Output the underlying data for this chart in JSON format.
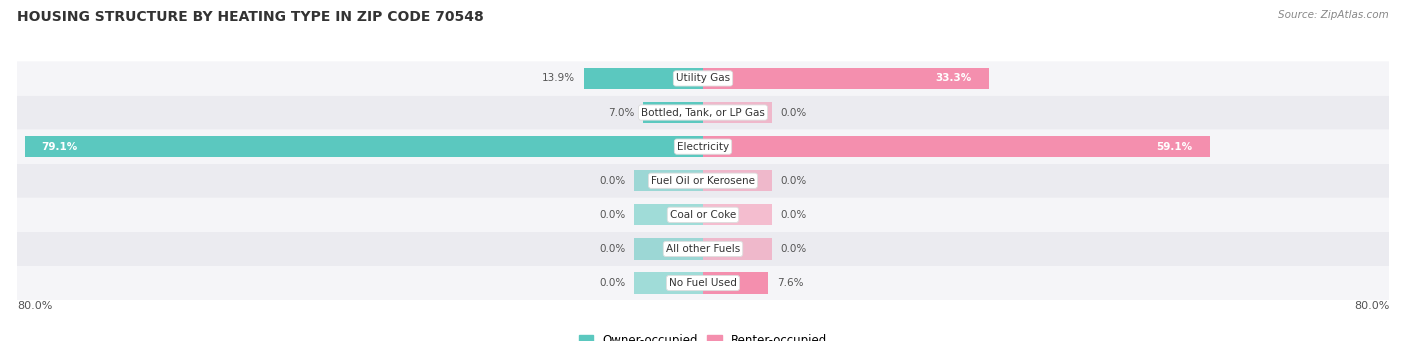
{
  "title": "HOUSING STRUCTURE BY HEATING TYPE IN ZIP CODE 70548",
  "source": "Source: ZipAtlas.com",
  "categories": [
    "Utility Gas",
    "Bottled, Tank, or LP Gas",
    "Electricity",
    "Fuel Oil or Kerosene",
    "Coal or Coke",
    "All other Fuels",
    "No Fuel Used"
  ],
  "owner_values": [
    13.9,
    7.0,
    79.1,
    0.0,
    0.0,
    0.0,
    0.0
  ],
  "renter_values": [
    33.3,
    0.0,
    59.1,
    0.0,
    0.0,
    0.0,
    7.6
  ],
  "owner_color": "#5BC8BF",
  "renter_color": "#F48FAE",
  "row_colors_even": "#F5F5F8",
  "row_colors_odd": "#EBEBF0",
  "axis_max": 80.0,
  "x_left_label": "80.0%",
  "x_right_label": "80.0%",
  "title_fontsize": 10,
  "source_fontsize": 7.5,
  "bar_height": 0.62,
  "placeholder_bar_width": 8.0,
  "background_color": "#FFFFFF",
  "label_color_dark": "#555555",
  "label_color_light": "#FFFFFF",
  "center_box_color": "#FFFFFF",
  "center_box_edge": "#DDDDDD"
}
